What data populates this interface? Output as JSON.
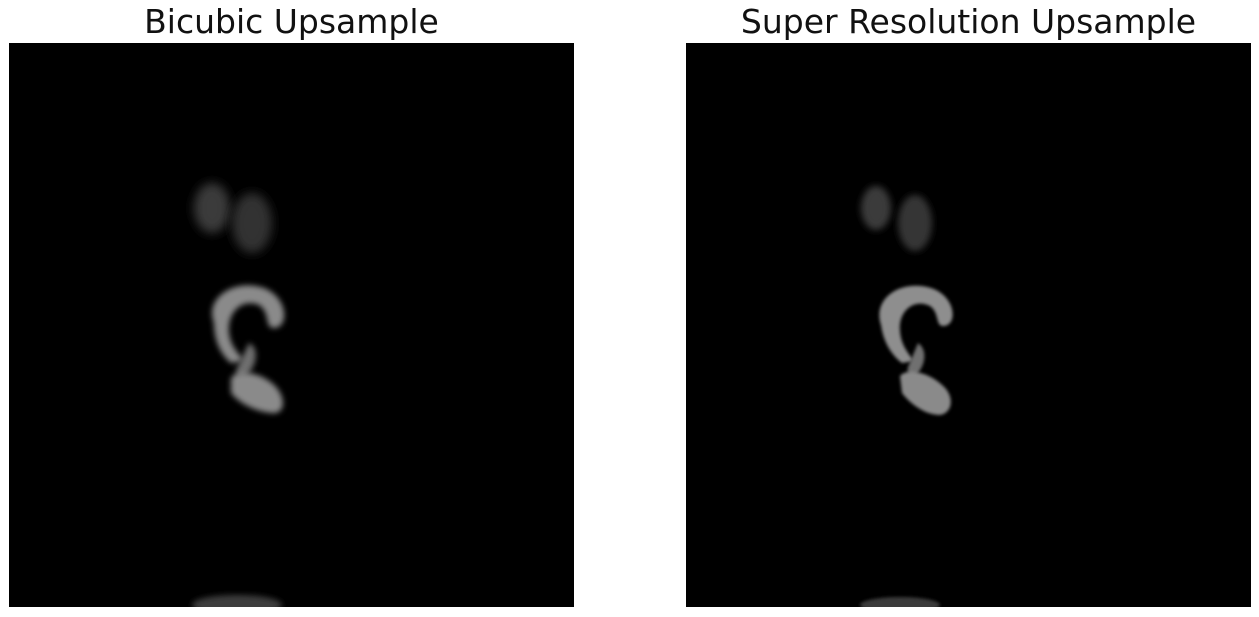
{
  "panels": [
    {
      "title": "Bicubic Upsample"
    },
    {
      "title": "Super Resolution Upsample"
    }
  ],
  "colors": {
    "page_background": "#ffffff",
    "image_background": "#000000",
    "title_text": "#111111",
    "tissue_gray": "#8a8a8a"
  }
}
